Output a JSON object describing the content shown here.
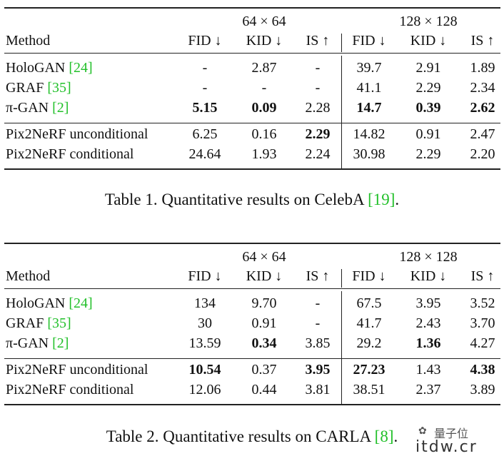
{
  "tables": [
    {
      "group_headers": [
        "64 × 64",
        "128 × 128"
      ],
      "columns": [
        "Method",
        "FID ↓",
        "KID ↓",
        "IS ↑",
        "FID ↓",
        "KID ↓",
        "IS ↑"
      ],
      "rows": [
        {
          "method": "HoloGAN",
          "cite": "[24]",
          "values": [
            "-",
            "2.87",
            "-",
            "39.7",
            "2.91",
            "1.89"
          ],
          "bold": []
        },
        {
          "method": "GRAF",
          "cite": "[35]",
          "values": [
            "-",
            "-",
            "-",
            "41.1",
            "2.29",
            "2.34"
          ],
          "bold": []
        },
        {
          "method": "π-GAN",
          "cite": "[2]",
          "values": [
            "5.15",
            "0.09",
            "2.28",
            "14.7",
            "0.39",
            "2.62"
          ],
          "bold": [
            0,
            1,
            3,
            4,
            5
          ]
        },
        {
          "method": "Pix2NeRF unconditional",
          "cite": "",
          "values": [
            "6.25",
            "0.16",
            "2.29",
            "14.82",
            "0.91",
            "2.47"
          ],
          "bold": [
            2
          ]
        },
        {
          "method": "Pix2NeRF conditional",
          "cite": "",
          "values": [
            "24.64",
            "1.93",
            "2.24",
            "30.98",
            "2.29",
            "2.20"
          ],
          "bold": []
        }
      ],
      "caption_text": "Table 1. Quantitative results on CelebA ",
      "caption_cite": "[19]",
      "caption_end": "."
    },
    {
      "group_headers": [
        "64 × 64",
        "128 × 128"
      ],
      "columns": [
        "Method",
        "FID ↓",
        "KID ↓",
        "IS ↑",
        "FID ↓",
        "KID ↓",
        "IS ↑"
      ],
      "rows": [
        {
          "method": "HoloGAN",
          "cite": "[24]",
          "values": [
            "134",
            "9.70",
            "-",
            "67.5",
            "3.95",
            "3.52"
          ],
          "bold": []
        },
        {
          "method": "GRAF",
          "cite": "[35]",
          "values": [
            "30",
            "0.91",
            "-",
            "41.7",
            "2.43",
            "3.70"
          ],
          "bold": []
        },
        {
          "method": "π-GAN",
          "cite": "[2]",
          "values": [
            "13.59",
            "0.34",
            "3.85",
            "29.2",
            "1.36",
            "4.27"
          ],
          "bold": [
            1,
            4
          ]
        },
        {
          "method": "Pix2NeRF unconditional",
          "cite": "",
          "values": [
            "10.54",
            "0.37",
            "3.95",
            "27.23",
            "1.43",
            "4.38"
          ],
          "bold": [
            0,
            2,
            3,
            5
          ]
        },
        {
          "method": "Pix2NeRF conditional",
          "cite": "",
          "values": [
            "12.06",
            "0.44",
            "3.81",
            "38.51",
            "2.37",
            "3.89"
          ],
          "bold": []
        }
      ],
      "caption_text": "Table 2. Quantitative results on CARLA ",
      "caption_cite": "[8]",
      "caption_end": "."
    }
  ],
  "watermark": {
    "text": "量子位",
    "url": "itdw.cr"
  }
}
